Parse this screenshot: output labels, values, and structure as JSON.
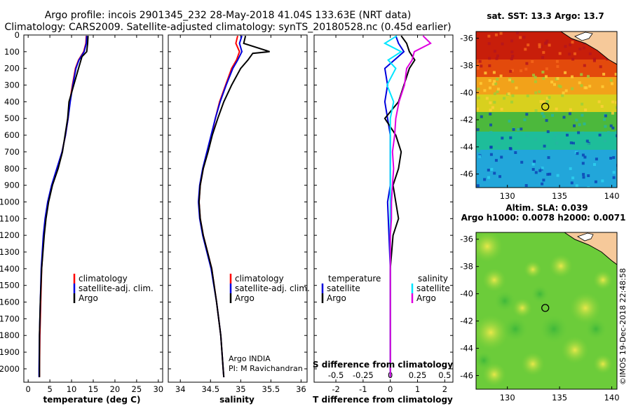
{
  "header": {
    "line1": "Argo profile: incois 2901345_232 28-May-2018 41.04S 133.63E (NRT data)",
    "line2": "Climatology: CARS2009. Satellite-adjusted climatology: synTS_20180528.nc (0.45d earlier)"
  },
  "colors": {
    "climatology": "#ff0000",
    "satellite": "#0000dd",
    "argo": "#000000",
    "sat_salinity": "#00e5ff",
    "argo_salinity_diff": "#e000e0"
  },
  "chart_data": [
    {
      "type": "line",
      "xlabel": "temperature (deg C)",
      "ylim": [
        2080,
        0
      ],
      "y_ticks": [
        0,
        100,
        200,
        300,
        400,
        500,
        600,
        700,
        800,
        900,
        1000,
        1100,
        1200,
        1300,
        1400,
        1500,
        1600,
        1700,
        1800,
        1900,
        2000
      ],
      "xlim": [
        -1,
        31
      ],
      "x_ticks": [
        0,
        5,
        10,
        15,
        20,
        25,
        30
      ],
      "legend": {
        "placement": "bottom-center",
        "items": [
          "climatology",
          "satellite-adj. clim.",
          "Argo"
        ]
      },
      "series": [
        {
          "name": "climatology",
          "color": "#ff0000",
          "depth": [
            5,
            50,
            100,
            150,
            200,
            300,
            400,
            500,
            600,
            700,
            800,
            900,
            1000,
            1100,
            1200,
            1400,
            1600,
            1800,
            2000,
            2050
          ],
          "values": [
            13.4,
            13.3,
            12.8,
            11.6,
            10.9,
            10.2,
            9.6,
            9.2,
            8.6,
            7.8,
            6.7,
            5.5,
            4.6,
            4.0,
            3.6,
            3.1,
            2.9,
            2.7,
            2.6,
            2.6
          ]
        },
        {
          "name": "satellite-adj. clim.",
          "color": "#0000dd",
          "depth": [
            5,
            50,
            100,
            150,
            200,
            300,
            400,
            500,
            600,
            700,
            800,
            900,
            1000,
            1100,
            1200,
            1400,
            1600,
            1800,
            2000,
            2050
          ],
          "values": [
            13.5,
            13.4,
            12.9,
            11.7,
            11.0,
            10.3,
            9.7,
            9.2,
            8.6,
            7.8,
            6.6,
            5.4,
            4.5,
            3.9,
            3.5,
            3.0,
            2.8,
            2.6,
            2.5,
            2.5
          ]
        },
        {
          "name": "Argo",
          "color": "#000000",
          "depth": [
            5,
            50,
            100,
            130,
            200,
            300,
            400,
            500,
            600,
            700,
            800,
            900,
            1000,
            1100,
            1200,
            1400,
            1600,
            1800,
            2000,
            2050
          ],
          "values": [
            13.8,
            13.7,
            13.5,
            12.4,
            11.6,
            10.5,
            9.4,
            9.1,
            8.5,
            7.9,
            6.9,
            5.6,
            4.7,
            4.1,
            3.7,
            3.1,
            2.8,
            2.6,
            2.6,
            2.6
          ]
        }
      ]
    },
    {
      "type": "line",
      "xlabel": "salinity",
      "ylim": [
        2080,
        0
      ],
      "xlim": [
        33.8,
        36.1
      ],
      "x_ticks": [
        34,
        34.5,
        35,
        35.5,
        36
      ],
      "x_tick_labels": [
        "34",
        "34.5",
        "35",
        "35.5",
        "36"
      ],
      "legend": {
        "placement": "bottom-center",
        "items": [
          "climatology",
          "satellite-adj. clim.",
          "Argo"
        ]
      },
      "annotations": [
        "Argo INDIA",
        "PI: M Ravichandran"
      ],
      "series": [
        {
          "name": "climatology",
          "color": "#ff0000",
          "depth": [
            5,
            50,
            100,
            150,
            200,
            300,
            400,
            500,
            600,
            700,
            800,
            900,
            1000,
            1100,
            1200,
            1300,
            1400,
            1600,
            1800,
            2000,
            2050
          ],
          "values": [
            34.95,
            34.92,
            34.98,
            34.93,
            34.85,
            34.75,
            34.65,
            34.58,
            34.52,
            34.45,
            34.38,
            34.33,
            34.31,
            34.33,
            34.38,
            34.45,
            34.52,
            34.6,
            34.67,
            34.71,
            34.72
          ]
        },
        {
          "name": "satellite-adj. clim.",
          "color": "#0000dd",
          "depth": [
            5,
            50,
            100,
            150,
            200,
            300,
            400,
            500,
            600,
            700,
            800,
            900,
            1000,
            1100,
            1200,
            1300,
            1400,
            1600,
            1800,
            2000,
            2050
          ],
          "values": [
            35.02,
            34.98,
            35.02,
            34.95,
            34.87,
            34.76,
            34.66,
            34.58,
            34.51,
            34.44,
            34.37,
            34.32,
            34.3,
            34.32,
            34.37,
            34.44,
            34.51,
            34.6,
            34.67,
            34.71,
            34.72
          ]
        },
        {
          "name": "Argo",
          "color": "#000000",
          "depth": [
            5,
            50,
            100,
            110,
            150,
            200,
            300,
            400,
            500,
            600,
            700,
            800,
            900,
            1000,
            1100,
            1200,
            1300,
            1400,
            1600,
            1800,
            2000,
            2050
          ],
          "values": [
            35.08,
            35.05,
            35.48,
            35.2,
            35.12,
            35.0,
            34.85,
            34.72,
            34.62,
            34.53,
            34.46,
            34.38,
            34.33,
            34.31,
            34.33,
            34.38,
            34.45,
            34.52,
            34.6,
            34.67,
            34.71,
            34.72
          ]
        }
      ]
    },
    {
      "type": "line",
      "xlabel": "T difference from climatology",
      "x2label": "S difference from climatology",
      "ylim": [
        2080,
        0
      ],
      "xlim": [
        -2.8,
        2.3
      ],
      "x_ticks": [
        -2,
        -1,
        0,
        1,
        2
      ],
      "x2_ticks": [
        -0.5,
        -0.25,
        0,
        0.25,
        0.5
      ],
      "x2_tick_labels": [
        "-0.5",
        "-0.25",
        "0",
        "0.25",
        "0.5"
      ],
      "legend": {
        "placement": "bottom",
        "temperature_title": "temperature",
        "salinity_title": "salinity",
        "temperature_items": [
          "satellite",
          "Argo"
        ],
        "salinity_items": [
          "satellite",
          "Argo"
        ]
      },
      "series": [
        {
          "name": "satellite",
          "color": "#0000dd",
          "depth": [
            5,
            50,
            100,
            200,
            300,
            400,
            500,
            600,
            700,
            800,
            900,
            1000,
            1200,
            1400,
            1600,
            1800,
            2000,
            2050
          ],
          "values": [
            0.2,
            0.3,
            0.5,
            -0.2,
            -0.1,
            -0.2,
            -0.1,
            0.0,
            0.0,
            0.0,
            0.0,
            -0.1,
            -0.05,
            0.0,
            0.0,
            0.0,
            0.0,
            0.0
          ]
        },
        {
          "name": "Argo",
          "color": "#000000",
          "depth": [
            5,
            50,
            100,
            150,
            200,
            300,
            400,
            500,
            600,
            700,
            800,
            900,
            1000,
            1100,
            1200,
            1400,
            1600,
            1800,
            2000,
            2050
          ],
          "values": [
            0.4,
            0.6,
            0.7,
            0.9,
            0.7,
            0.5,
            0.3,
            -0.2,
            0.2,
            0.4,
            0.3,
            0.1,
            0.2,
            0.3,
            0.1,
            0.0,
            0.0,
            0.0,
            0.0,
            0.0
          ]
        },
        {
          "name": "satellite",
          "color": "#00e5ff",
          "depth": [
            5,
            50,
            100,
            150,
            200,
            300,
            400,
            500,
            600,
            700,
            800,
            900,
            1000,
            1200,
            1400,
            1600,
            1800,
            2000,
            2050
          ],
          "values": [
            0.06,
            -0.05,
            0.1,
            -0.02,
            0.05,
            -0.03,
            0.03,
            0.0,
            0.0,
            0.0,
            0.0,
            0.0,
            0.0,
            0.0,
            0.0,
            0.0,
            0.0,
            0.0,
            0.0
          ]
        },
        {
          "name": "Argo",
          "color": "#e000e0",
          "depth": [
            5,
            50,
            100,
            150,
            200,
            300,
            400,
            500,
            600,
            700,
            800,
            900,
            1000,
            1100,
            1200,
            1400,
            1600,
            1800,
            2000,
            2050
          ],
          "values": [
            0.3,
            0.37,
            0.22,
            0.2,
            0.15,
            0.13,
            0.08,
            0.05,
            0.04,
            0.02,
            0.03,
            0.02,
            0.01,
            0.01,
            0.0,
            0.0,
            0.0,
            0.0,
            0.0,
            0.0
          ]
        }
      ]
    },
    {
      "type": "heatmap",
      "title": "sat. SST: 13.3 Argo: 13.7",
      "xlim": [
        127,
        140.5
      ],
      "ylim": [
        -47,
        -35.5
      ],
      "x_ticks": [
        130,
        135,
        140
      ],
      "y_ticks": [
        -36,
        -38,
        -40,
        -42,
        -44,
        -46
      ],
      "marker": {
        "lon": 133.63,
        "lat": -41.04
      }
    },
    {
      "type": "heatmap",
      "title": "Altim. SLA: 0.039",
      "subtitle": "Argo h1000: 0.0078 h2000: 0.0071",
      "xlim": [
        127,
        140.5
      ],
      "ylim": [
        -47,
        -35.5
      ],
      "x_ticks": [
        130,
        135,
        140
      ],
      "y_ticks": [
        -36,
        -38,
        -40,
        -42,
        -44,
        -46
      ],
      "marker": {
        "lon": 133.63,
        "lat": -41.04
      }
    }
  ],
  "watermark": "©IMOS 19-Dec-2018 22:48:58"
}
